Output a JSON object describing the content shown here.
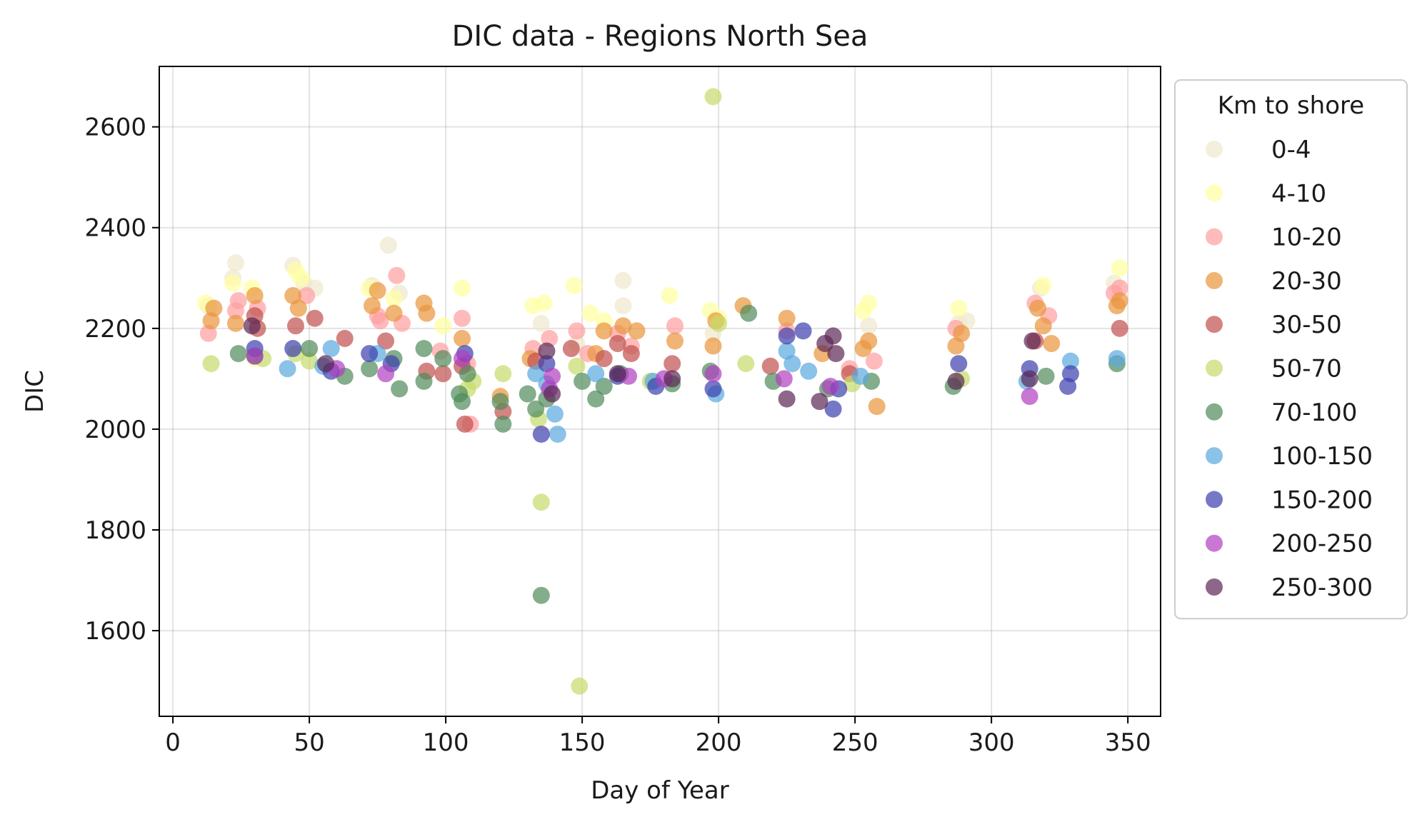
{
  "chart_data": {
    "type": "scatter",
    "title": "DIC data - Regions North Sea",
    "xlabel": "Day of Year",
    "ylabel": "DIC",
    "xlim": [
      -5,
      362
    ],
    "ylim": [
      1430,
      2720
    ],
    "x_ticks": [
      0,
      50,
      100,
      150,
      200,
      250,
      300,
      350
    ],
    "y_ticks": [
      1600,
      1800,
      2000,
      2200,
      2400,
      2600
    ],
    "grid": true,
    "legend": {
      "title": "Km to shore",
      "placement": "outside-right"
    },
    "series": [
      {
        "name": "0-4",
        "color": "#eee8cd",
        "points": [
          [
            13,
            2245
          ],
          [
            23,
            2330
          ],
          [
            22,
            2300
          ],
          [
            44,
            2325
          ],
          [
            48,
            2290
          ],
          [
            52,
            2280
          ],
          [
            73,
            2285
          ],
          [
            79,
            2365
          ],
          [
            83,
            2270
          ],
          [
            135,
            2210
          ],
          [
            148,
            2170
          ],
          [
            165,
            2295
          ],
          [
            165,
            2245
          ],
          [
            198,
            2190
          ],
          [
            255,
            2205
          ],
          [
            288,
            2210
          ],
          [
            291,
            2215
          ],
          [
            318,
            2280
          ],
          [
            345,
            2290
          ]
        ]
      },
      {
        "name": "4-10",
        "color": "#ffffa0",
        "points": [
          [
            12,
            2250
          ],
          [
            22,
            2290
          ],
          [
            29,
            2280
          ],
          [
            30,
            2140
          ],
          [
            45,
            2315
          ],
          [
            47,
            2300
          ],
          [
            72,
            2280
          ],
          [
            81,
            2260
          ],
          [
            99,
            2205
          ],
          [
            106,
            2280
          ],
          [
            132,
            2245
          ],
          [
            136,
            2250
          ],
          [
            147,
            2285
          ],
          [
            153,
            2230
          ],
          [
            158,
            2215
          ],
          [
            182,
            2265
          ],
          [
            197,
            2235
          ],
          [
            200,
            2220
          ],
          [
            253,
            2235
          ],
          [
            255,
            2250
          ],
          [
            288,
            2240
          ],
          [
            319,
            2285
          ],
          [
            347,
            2320
          ]
        ]
      },
      {
        "name": "10-20",
        "color": "#ff9ea0",
        "points": [
          [
            13,
            2190
          ],
          [
            23,
            2235
          ],
          [
            24,
            2255
          ],
          [
            31,
            2240
          ],
          [
            49,
            2265
          ],
          [
            75,
            2225
          ],
          [
            76,
            2215
          ],
          [
            82,
            2305
          ],
          [
            84,
            2210
          ],
          [
            98,
            2155
          ],
          [
            106,
            2220
          ],
          [
            108,
            2130
          ],
          [
            109,
            2010
          ],
          [
            132,
            2160
          ],
          [
            138,
            2180
          ],
          [
            148,
            2195
          ],
          [
            152,
            2150
          ],
          [
            163,
            2190
          ],
          [
            168,
            2165
          ],
          [
            184,
            2205
          ],
          [
            225,
            2195
          ],
          [
            248,
            2120
          ],
          [
            257,
            2135
          ],
          [
            287,
            2200
          ],
          [
            316,
            2250
          ],
          [
            321,
            2225
          ],
          [
            345,
            2270
          ],
          [
            347,
            2280
          ]
        ]
      },
      {
        "name": "20-30",
        "color": "#e9943a",
        "points": [
          [
            14,
            2215
          ],
          [
            15,
            2240
          ],
          [
            23,
            2210
          ],
          [
            30,
            2265
          ],
          [
            44,
            2265
          ],
          [
            46,
            2240
          ],
          [
            73,
            2245
          ],
          [
            75,
            2275
          ],
          [
            81,
            2230
          ],
          [
            92,
            2250
          ],
          [
            93,
            2230
          ],
          [
            106,
            2180
          ],
          [
            120,
            2065
          ],
          [
            131,
            2140
          ],
          [
            155,
            2150
          ],
          [
            158,
            2195
          ],
          [
            165,
            2205
          ],
          [
            170,
            2195
          ],
          [
            184,
            2175
          ],
          [
            198,
            2165
          ],
          [
            199,
            2215
          ],
          [
            209,
            2245
          ],
          [
            225,
            2220
          ],
          [
            238,
            2150
          ],
          [
            253,
            2160
          ],
          [
            255,
            2175
          ],
          [
            258,
            2045
          ],
          [
            287,
            2165
          ],
          [
            289,
            2190
          ],
          [
            317,
            2240
          ],
          [
            319,
            2205
          ],
          [
            322,
            2170
          ],
          [
            346,
            2245
          ],
          [
            347,
            2255
          ]
        ]
      },
      {
        "name": "30-50",
        "color": "#c0504d",
        "points": [
          [
            30,
            2225
          ],
          [
            31,
            2200
          ],
          [
            45,
            2205
          ],
          [
            52,
            2220
          ],
          [
            63,
            2180
          ],
          [
            78,
            2175
          ],
          [
            93,
            2115
          ],
          [
            99,
            2110
          ],
          [
            106,
            2125
          ],
          [
            107,
            2010
          ],
          [
            121,
            2035
          ],
          [
            133,
            2135
          ],
          [
            146,
            2160
          ],
          [
            158,
            2140
          ],
          [
            163,
            2170
          ],
          [
            168,
            2150
          ],
          [
            183,
            2130
          ],
          [
            219,
            2125
          ],
          [
            248,
            2110
          ],
          [
            316,
            2175
          ],
          [
            347,
            2200
          ]
        ]
      },
      {
        "name": "50-70",
        "color": "#c6db6a",
        "points": [
          [
            14,
            2130
          ],
          [
            33,
            2140
          ],
          [
            45,
            2150
          ],
          [
            50,
            2135
          ],
          [
            108,
            2080
          ],
          [
            110,
            2095
          ],
          [
            121,
            2110
          ],
          [
            134,
            2020
          ],
          [
            135,
            1855
          ],
          [
            148,
            2125
          ],
          [
            149,
            1490
          ],
          [
            175,
            2095
          ],
          [
            198,
            2660
          ],
          [
            200,
            2210
          ],
          [
            210,
            2130
          ],
          [
            249,
            2090
          ],
          [
            289,
            2100
          ]
        ]
      },
      {
        "name": "70-100",
        "color": "#4e8a5a",
        "points": [
          [
            24,
            2150
          ],
          [
            30,
            2145
          ],
          [
            50,
            2160
          ],
          [
            63,
            2105
          ],
          [
            72,
            2120
          ],
          [
            81,
            2140
          ],
          [
            83,
            2080
          ],
          [
            92,
            2160
          ],
          [
            92,
            2095
          ],
          [
            99,
            2140
          ],
          [
            105,
            2070
          ],
          [
            106,
            2055
          ],
          [
            108,
            2110
          ],
          [
            120,
            2055
          ],
          [
            121,
            2010
          ],
          [
            130,
            2070
          ],
          [
            133,
            2040
          ],
          [
            135,
            1670
          ],
          [
            137,
            2060
          ],
          [
            150,
            2095
          ],
          [
            155,
            2060
          ],
          [
            158,
            2085
          ],
          [
            164,
            2110
          ],
          [
            183,
            2090
          ],
          [
            197,
            2115
          ],
          [
            211,
            2230
          ],
          [
            220,
            2095
          ],
          [
            240,
            2080
          ],
          [
            256,
            2095
          ],
          [
            286,
            2085
          ],
          [
            320,
            2105
          ],
          [
            346,
            2130
          ]
        ]
      },
      {
        "name": "100-150",
        "color": "#5aa8de",
        "points": [
          [
            42,
            2120
          ],
          [
            55,
            2125
          ],
          [
            58,
            2160
          ],
          [
            75,
            2150
          ],
          [
            133,
            2110
          ],
          [
            137,
            2090
          ],
          [
            140,
            2030
          ],
          [
            141,
            1990
          ],
          [
            155,
            2110
          ],
          [
            176,
            2095
          ],
          [
            199,
            2070
          ],
          [
            225,
            2155
          ],
          [
            227,
            2130
          ],
          [
            233,
            2115
          ],
          [
            252,
            2105
          ],
          [
            313,
            2095
          ],
          [
            329,
            2135
          ],
          [
            346,
            2140
          ]
        ]
      },
      {
        "name": "150-200",
        "color": "#3c3fae",
        "points": [
          [
            30,
            2160
          ],
          [
            44,
            2160
          ],
          [
            58,
            2115
          ],
          [
            72,
            2150
          ],
          [
            80,
            2130
          ],
          [
            107,
            2150
          ],
          [
            135,
            1990
          ],
          [
            137,
            2130
          ],
          [
            163,
            2105
          ],
          [
            177,
            2085
          ],
          [
            198,
            2080
          ],
          [
            225,
            2185
          ],
          [
            231,
            2195
          ],
          [
            242,
            2040
          ],
          [
            244,
            2080
          ],
          [
            288,
            2130
          ],
          [
            314,
            2120
          ],
          [
            328,
            2085
          ],
          [
            329,
            2110
          ]
        ]
      },
      {
        "name": "200-250",
        "color": "#b13fc0",
        "points": [
          [
            30,
            2145
          ],
          [
            60,
            2120
          ],
          [
            78,
            2110
          ],
          [
            106,
            2140
          ],
          [
            138,
            2080
          ],
          [
            139,
            2105
          ],
          [
            167,
            2105
          ],
          [
            180,
            2100
          ],
          [
            198,
            2110
          ],
          [
            224,
            2100
          ],
          [
            241,
            2085
          ],
          [
            314,
            2065
          ]
        ]
      },
      {
        "name": "250-300",
        "color": "#5b2654",
        "points": [
          [
            29,
            2205
          ],
          [
            56,
            2130
          ],
          [
            137,
            2155
          ],
          [
            139,
            2070
          ],
          [
            163,
            2110
          ],
          [
            183,
            2100
          ],
          [
            225,
            2060
          ],
          [
            237,
            2055
          ],
          [
            239,
            2170
          ],
          [
            242,
            2185
          ],
          [
            243,
            2150
          ],
          [
            287,
            2095
          ],
          [
            314,
            2100
          ],
          [
            315,
            2175
          ]
        ]
      }
    ]
  }
}
